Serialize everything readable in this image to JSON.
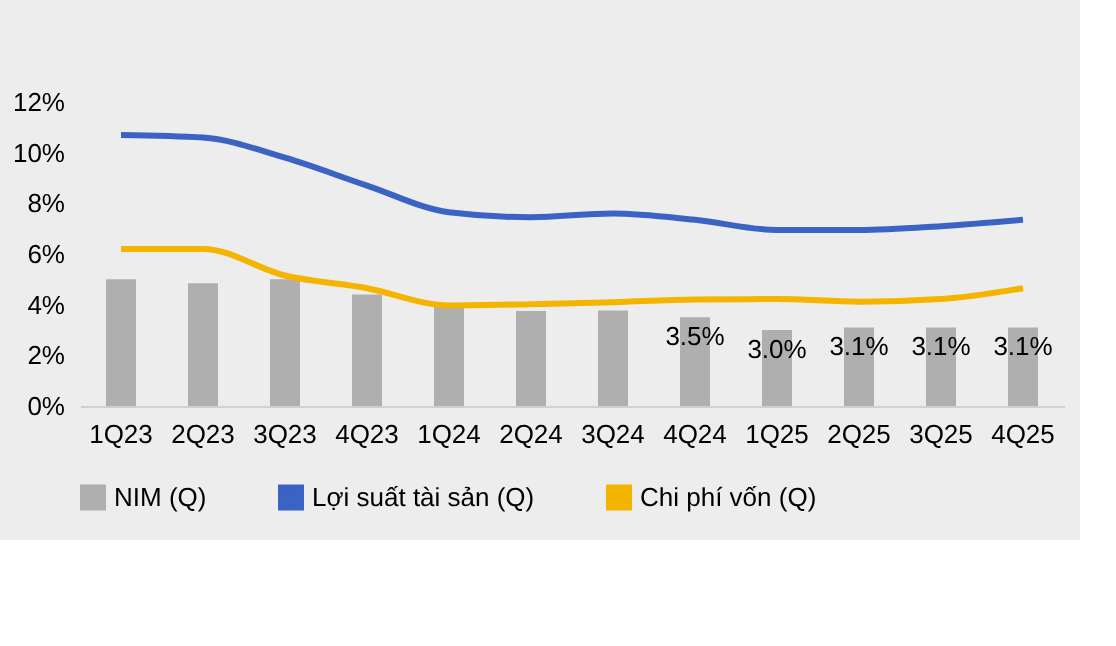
{
  "chart_data": {
    "type": "bar",
    "categories": [
      "1Q23",
      "2Q23",
      "3Q23",
      "4Q23",
      "1Q24",
      "2Q24",
      "3Q24",
      "4Q24",
      "1Q25",
      "2Q25",
      "3Q25",
      "4Q25"
    ],
    "series": [
      {
        "name": "NIM (Q)",
        "color": "#afafaf",
        "values": [
          5.0,
          4.85,
          5.0,
          4.4,
          3.95,
          3.75,
          3.77,
          3.5,
          3.0,
          3.1,
          3.1,
          3.1
        ],
        "value_labels": [
          null,
          null,
          null,
          null,
          null,
          null,
          null,
          "3.5%",
          "3.0%",
          "3.1%",
          "3.1%",
          "3.1%"
        ]
      },
      {
        "name": "Lợi suất tài sản (Q)",
        "type": "line",
        "color": "#3a63c4",
        "values": [
          10.7,
          10.6,
          9.8,
          8.7,
          7.65,
          7.45,
          7.6,
          7.35,
          6.95,
          6.95,
          7.1,
          7.35
        ]
      },
      {
        "name": "Chi phí vốn (Q)",
        "type": "line",
        "color": "#f5b400",
        "values": [
          6.2,
          6.2,
          5.15,
          4.65,
          3.97,
          4.02,
          4.1,
          4.2,
          4.22,
          4.12,
          4.22,
          4.65
        ]
      }
    ],
    "ylim": [
      0,
      12
    ],
    "yticks": [
      {
        "value": 0,
        "label": "0%"
      },
      {
        "value": 2,
        "label": "2%"
      },
      {
        "value": 4,
        "label": "4%"
      },
      {
        "value": 6,
        "label": "6%"
      },
      {
        "value": 8,
        "label": "8%"
      },
      {
        "value": 10,
        "label": "10%"
      },
      {
        "value": 12,
        "label": "12%"
      }
    ],
    "legend": "bottom",
    "grid": false
  }
}
